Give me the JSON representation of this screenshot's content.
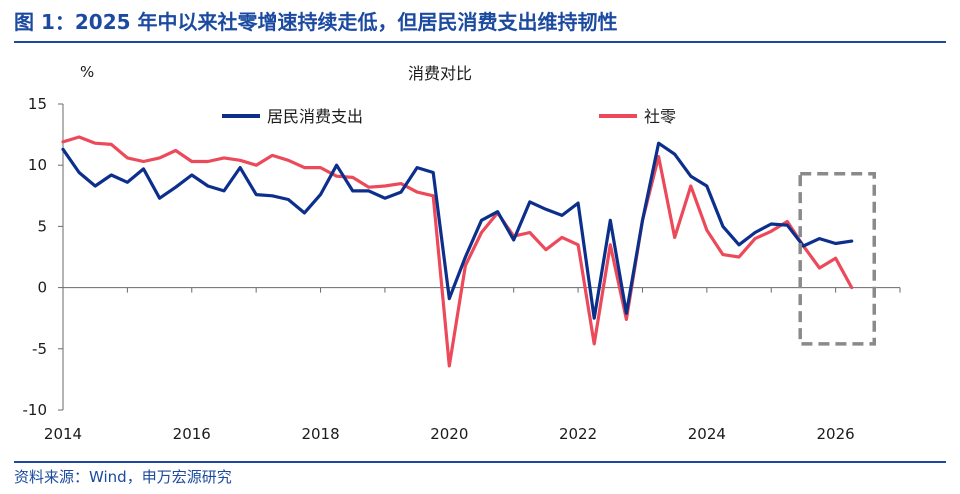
{
  "figure": {
    "title": "图 1：2025 年中以来社零增速持续走低，但居民消费支出维持韧性",
    "source": "资料来源：Wind，申万宏源研究"
  },
  "chart_data": {
    "type": "line",
    "title": "消费对比",
    "ylabel": "%",
    "ylim": [
      -10,
      15
    ],
    "yticks": [
      -10,
      -5,
      0,
      5,
      10,
      15
    ],
    "xlim": [
      2014.0,
      2027.0
    ],
    "xticks": [
      2014,
      2016,
      2018,
      2020,
      2022,
      2024,
      2026
    ],
    "legend_placement": "top",
    "grid": false,
    "highlight_box": {
      "x0": 2025.45,
      "x1": 2026.6,
      "y0": -4.6,
      "y1": 9.3,
      "style": "dashed",
      "color": "#8a8a8a"
    },
    "series": [
      {
        "name": "居民消费支出",
        "color": "#0d2f8c",
        "points": [
          [
            2014.0,
            11.3
          ],
          [
            2014.25,
            9.4
          ],
          [
            2014.5,
            8.3
          ],
          [
            2014.75,
            9.2
          ],
          [
            2015.0,
            8.6
          ],
          [
            2015.25,
            9.7
          ],
          [
            2015.5,
            7.3
          ],
          [
            2015.75,
            8.2
          ],
          [
            2016.0,
            9.2
          ],
          [
            2016.25,
            8.3
          ],
          [
            2016.5,
            7.9
          ],
          [
            2016.75,
            9.8
          ],
          [
            2017.0,
            7.6
          ],
          [
            2017.25,
            7.5
          ],
          [
            2017.5,
            7.2
          ],
          [
            2017.75,
            6.1
          ],
          [
            2018.0,
            7.6
          ],
          [
            2018.25,
            10.0
          ],
          [
            2018.5,
            7.9
          ],
          [
            2018.75,
            7.9
          ],
          [
            2019.0,
            7.3
          ],
          [
            2019.25,
            7.8
          ],
          [
            2019.5,
            9.8
          ],
          [
            2019.75,
            9.4
          ],
          [
            2020.0,
            -0.9
          ],
          [
            2020.25,
            2.5
          ],
          [
            2020.5,
            5.5
          ],
          [
            2020.75,
            6.2
          ],
          [
            2021.0,
            3.9
          ],
          [
            2021.25,
            7.0
          ],
          [
            2021.5,
            6.4
          ],
          [
            2021.75,
            5.9
          ],
          [
            2022.0,
            6.9
          ],
          [
            2022.25,
            -2.5
          ],
          [
            2022.5,
            5.5
          ],
          [
            2022.75,
            -2.1
          ],
          [
            2023.0,
            5.5
          ],
          [
            2023.25,
            11.8
          ],
          [
            2023.5,
            10.9
          ],
          [
            2023.75,
            9.1
          ],
          [
            2024.0,
            8.3
          ],
          [
            2024.25,
            5.0
          ],
          [
            2024.5,
            3.5
          ],
          [
            2024.75,
            4.5
          ],
          [
            2025.0,
            5.2
          ],
          [
            2025.25,
            5.1
          ],
          [
            2025.5,
            3.4
          ],
          [
            2025.75,
            4.0
          ],
          [
            2026.0,
            3.6
          ],
          [
            2026.25,
            3.8
          ]
        ]
      },
      {
        "name": "社零",
        "color": "#ec4a5a",
        "points": [
          [
            2014.0,
            11.9
          ],
          [
            2014.25,
            12.3
          ],
          [
            2014.5,
            11.8
          ],
          [
            2014.75,
            11.7
          ],
          [
            2015.0,
            10.6
          ],
          [
            2015.25,
            10.3
          ],
          [
            2015.5,
            10.6
          ],
          [
            2015.75,
            11.2
          ],
          [
            2016.0,
            10.3
          ],
          [
            2016.25,
            10.3
          ],
          [
            2016.5,
            10.6
          ],
          [
            2016.75,
            10.4
          ],
          [
            2017.0,
            10.0
          ],
          [
            2017.25,
            10.8
          ],
          [
            2017.5,
            10.4
          ],
          [
            2017.75,
            9.8
          ],
          [
            2018.0,
            9.8
          ],
          [
            2018.25,
            9.1
          ],
          [
            2018.5,
            9.0
          ],
          [
            2018.75,
            8.2
          ],
          [
            2019.0,
            8.3
          ],
          [
            2019.25,
            8.5
          ],
          [
            2019.5,
            7.8
          ],
          [
            2019.75,
            7.5
          ],
          [
            2020.0,
            -6.4
          ],
          [
            2020.25,
            1.8
          ],
          [
            2020.5,
            4.5
          ],
          [
            2020.75,
            6.1
          ],
          [
            2021.0,
            4.2
          ],
          [
            2021.25,
            4.5
          ],
          [
            2021.5,
            3.1
          ],
          [
            2021.75,
            4.1
          ],
          [
            2022.0,
            3.5
          ],
          [
            2022.25,
            -4.6
          ],
          [
            2022.5,
            3.5
          ],
          [
            2022.75,
            -2.6
          ],
          [
            2023.0,
            5.5
          ],
          [
            2023.25,
            10.7
          ],
          [
            2023.5,
            4.1
          ],
          [
            2023.75,
            8.3
          ],
          [
            2024.0,
            4.7
          ],
          [
            2024.25,
            2.7
          ],
          [
            2024.5,
            2.5
          ],
          [
            2024.75,
            4.0
          ],
          [
            2025.0,
            4.6
          ],
          [
            2025.25,
            5.4
          ],
          [
            2025.5,
            3.4
          ],
          [
            2025.75,
            1.6
          ],
          [
            2026.0,
            2.4
          ],
          [
            2026.25,
            0.0
          ]
        ]
      }
    ]
  }
}
